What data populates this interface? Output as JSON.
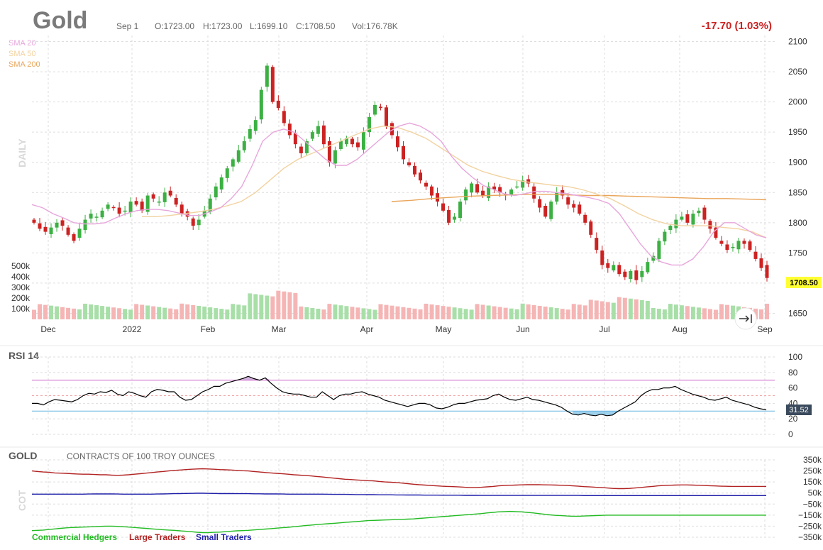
{
  "header": {
    "title": "Gold",
    "date": "Sep 1",
    "open": "O:1723.00",
    "high": "H:1723.00",
    "low": "L:1699.10",
    "close": "C:1708.50",
    "volume": "Vol:176.78K",
    "change": "-17.70 (1.03%)"
  },
  "legend": {
    "sma20": "SMA 20",
    "sma50": "SMA 50",
    "sma200": "SMA 200"
  },
  "interval_label": "DAILY",
  "price_tag": "1708.50",
  "colors": {
    "up": "#3cb043",
    "down": "#cc2222",
    "vol_up": "#a8dfa8",
    "vol_down": "#f5b5b5",
    "sma20": "#e7a6dc",
    "sma50": "#f2d2a0",
    "sma200": "#e9a55a",
    "rsi": "#000000",
    "rsi_hi": "#cc66cc",
    "rsi_lo": "#66b3e0",
    "hedgers": "#22bb22",
    "large": "#b22222",
    "small": "#1f1faa",
    "change": "#cc2222"
  },
  "rsi_label": "RSI 14",
  "rsi_value": "31.52",
  "cot": {
    "title": "GOLD",
    "subtitle": "CONTRACTS OF 100 TROY OUNCES",
    "side_label": "COT"
  },
  "cot_legend": {
    "hedgers": "Commercial Hedgers",
    "large": "Large Traders",
    "small": "Small Traders"
  },
  "nav_icon": "jump-to-latest-icon",
  "chart_data": [
    {
      "type": "candlestick",
      "x_labels": [
        "Dec",
        "2022",
        "Feb",
        "Mar",
        "Apr",
        "May",
        "Jun",
        "Jul",
        "Aug",
        "Sep"
      ],
      "y_ticks": [
        1650,
        1700,
        1750,
        1800,
        1850,
        1900,
        1950,
        2000,
        2050,
        2100
      ],
      "ylim": [
        1640,
        2110
      ],
      "volume_ticks": [
        "100k",
        "200k",
        "300k",
        "400k",
        "500k"
      ],
      "close_path": [
        1800,
        1790,
        1785,
        1792,
        1800,
        1795,
        1780,
        1770,
        1790,
        1805,
        1815,
        1810,
        1820,
        1830,
        1825,
        1815,
        1820,
        1835,
        1830,
        1820,
        1845,
        1840,
        1835,
        1850,
        1845,
        1830,
        1815,
        1810,
        1795,
        1805,
        1820,
        1840,
        1860,
        1875,
        1890,
        1905,
        1920,
        1935,
        1955,
        1970,
        2020,
        2060,
        2000,
        1990,
        1965,
        1945,
        1930,
        1915,
        1935,
        1950,
        1960,
        1930,
        1900,
        1920,
        1935,
        1940,
        1930,
        1925,
        1950,
        1975,
        1995,
        1990,
        1960,
        1945,
        1925,
        1905,
        1895,
        1880,
        1870,
        1860,
        1845,
        1835,
        1820,
        1800,
        1810,
        1835,
        1855,
        1865,
        1850,
        1845,
        1860,
        1855,
        1850,
        1845,
        1855,
        1860,
        1870,
        1865,
        1840,
        1825,
        1810,
        1835,
        1850,
        1845,
        1830,
        1825,
        1815,
        1800,
        1780,
        1755,
        1730,
        1725,
        1730,
        1715,
        1710,
        1720,
        1705,
        1720,
        1735,
        1745,
        1770,
        1785,
        1795,
        1805,
        1810,
        1800,
        1815,
        1820,
        1805,
        1790,
        1775,
        1765,
        1755,
        1760,
        1770,
        1765,
        1755,
        1740,
        1725,
        1708.5
      ],
      "sma20": [
        1830,
        1825,
        1815,
        1808,
        1800,
        1798,
        1798,
        1800,
        1808,
        1815,
        1820,
        1822,
        1822,
        1820,
        1816,
        1812,
        1812,
        1818,
        1825,
        1840,
        1860,
        1895,
        1935,
        1950,
        1955,
        1950,
        1935,
        1920,
        1905,
        1895,
        1895,
        1905,
        1920,
        1935,
        1950,
        1960,
        1965,
        1960,
        1950,
        1935,
        1910,
        1890,
        1875,
        1862,
        1855,
        1848,
        1845,
        1848,
        1852,
        1852,
        1850,
        1848,
        1845,
        1842,
        1838,
        1832,
        1815,
        1790,
        1765,
        1745,
        1735,
        1730,
        1730,
        1740,
        1760,
        1785,
        1800,
        1800,
        1790,
        1780,
        1775
      ],
      "sma50": [
        1810,
        1810,
        1812,
        1815,
        1818,
        1822,
        1828,
        1835,
        1850,
        1870,
        1890,
        1905,
        1915,
        1925,
        1935,
        1945,
        1955,
        1960,
        1958,
        1950,
        1940,
        1925,
        1910,
        1895,
        1885,
        1878,
        1872,
        1868,
        1865,
        1862,
        1860,
        1855,
        1848,
        1840,
        1828,
        1815,
        1805,
        1798,
        1795,
        1795,
        1795,
        1792,
        1790,
        1785,
        1775
      ],
      "sma200": [
        1835,
        1837,
        1840,
        1842,
        1844,
        1845,
        1846,
        1847,
        1847,
        1846,
        1845,
        1845,
        1844,
        1843,
        1842,
        1841,
        1840,
        1840,
        1839,
        1838
      ],
      "current_price": 1708.5
    },
    {
      "type": "line",
      "title": "RSI 14",
      "y_ticks": [
        0,
        20,
        40,
        60,
        80,
        100
      ],
      "ylim": [
        0,
        100
      ],
      "overbought": 70,
      "oversold": 30,
      "values": [
        40,
        40,
        38,
        42,
        45,
        44,
        43,
        42,
        45,
        50,
        53,
        52,
        55,
        54,
        57,
        52,
        50,
        55,
        53,
        50,
        48,
        55,
        58,
        57,
        55,
        55,
        48,
        44,
        45,
        50,
        55,
        58,
        62,
        62,
        66,
        68,
        70,
        72,
        75,
        72,
        70,
        73,
        66,
        60,
        55,
        53,
        52,
        52,
        50,
        48,
        48,
        55,
        50,
        45,
        50,
        52,
        52,
        54,
        55,
        52,
        50,
        48,
        44,
        42,
        40,
        38,
        36,
        38,
        40,
        40,
        38,
        34,
        33,
        35,
        38,
        40,
        40,
        42,
        44,
        45,
        46,
        50,
        52,
        48,
        45,
        44,
        46,
        48,
        45,
        44,
        42,
        40,
        38,
        35,
        30,
        26,
        25,
        27,
        25,
        24,
        26,
        24,
        25,
        30,
        34,
        38,
        42,
        50,
        55,
        58,
        58,
        60,
        60,
        62,
        58,
        55,
        52,
        50,
        48,
        45,
        44,
        46,
        48,
        44,
        42,
        40,
        38,
        35,
        33,
        31.52
      ],
      "current": 31.52
    },
    {
      "type": "line",
      "title": "GOLD",
      "y_ticks": [
        "350k",
        "250k",
        "150k",
        "50k",
        "−50k",
        "−150k",
        "−250k",
        "−350k"
      ],
      "ylim": [
        -350000,
        350000
      ],
      "series": [
        {
          "name": "Large Traders",
          "values": [
            250,
            245,
            240,
            238,
            232,
            230,
            228,
            225,
            222,
            220,
            220,
            218,
            215,
            215,
            212,
            210,
            212,
            215,
            220,
            225,
            230,
            235,
            240,
            245,
            250,
            255,
            258,
            262,
            265,
            268,
            270,
            268,
            265,
            262,
            260,
            258,
            255,
            252,
            250,
            245,
            240,
            236,
            232,
            228,
            224,
            220,
            215,
            212,
            208,
            205,
            200,
            195,
            190,
            185,
            180,
            175,
            172,
            168,
            165,
            162,
            160,
            155,
            150,
            148,
            145,
            140,
            135,
            130,
            125,
            122,
            118,
            115,
            112,
            110,
            108,
            105,
            102,
            100,
            100,
            102,
            106,
            110,
            115,
            118,
            120,
            122,
            124,
            125,
            126,
            125,
            124,
            123,
            122,
            120,
            118,
            115,
            112,
            108,
            105,
            102,
            100,
            96,
            92,
            90,
            90,
            92,
            96,
            100,
            105,
            110,
            115,
            118,
            120,
            122,
            123,
            123,
            122,
            120,
            118,
            116,
            114,
            112,
            111,
            110,
            110,
            110,
            110,
            110,
            110,
            110
          ]
        },
        {
          "name": "Small Traders",
          "values": [
            40,
            40,
            40,
            40,
            40,
            40,
            40,
            40,
            40,
            40,
            41,
            42,
            42,
            42,
            42,
            41,
            40,
            40,
            40,
            40,
            40,
            40,
            41,
            42,
            43,
            44,
            45,
            46,
            47,
            48,
            48,
            47,
            46,
            45,
            45,
            45,
            44,
            44,
            44,
            43,
            43,
            42,
            42,
            42,
            41,
            40,
            40,
            40,
            40,
            40,
            40,
            40,
            39,
            38,
            38,
            38,
            37,
            36,
            36,
            35,
            35,
            34,
            34,
            34,
            33,
            33,
            32,
            32,
            32,
            31,
            31,
            31,
            30,
            30,
            30,
            30,
            29,
            29,
            29,
            28,
            28,
            28,
            28,
            28,
            28,
            28,
            28,
            28,
            28,
            28,
            28,
            28,
            28,
            28,
            28,
            28,
            28,
            27,
            27,
            27,
            27,
            27,
            27,
            27,
            27,
            27,
            27,
            27,
            27,
            27,
            27,
            27,
            27,
            27,
            27,
            27,
            27,
            27,
            27,
            27,
            27,
            27,
            27,
            27,
            27,
            27,
            27,
            27,
            27,
            27
          ]
        },
        {
          "name": "Commercial Hedgers",
          "values": [
            -290,
            -288,
            -285,
            -280,
            -275,
            -270,
            -265,
            -262,
            -260,
            -258,
            -256,
            -254,
            -252,
            -250,
            -250,
            -252,
            -255,
            -258,
            -262,
            -266,
            -270,
            -274,
            -278,
            -282,
            -285,
            -288,
            -292,
            -296,
            -300,
            -305,
            -308,
            -308,
            -306,
            -304,
            -300,
            -296,
            -292,
            -290,
            -288,
            -284,
            -280,
            -276,
            -272,
            -268,
            -264,
            -260,
            -255,
            -250,
            -245,
            -240,
            -236,
            -232,
            -228,
            -224,
            -220,
            -216,
            -212,
            -208,
            -204,
            -200,
            -198,
            -196,
            -194,
            -192,
            -190,
            -188,
            -186,
            -184,
            -180,
            -176,
            -172,
            -168,
            -164,
            -160,
            -156,
            -152,
            -148,
            -144,
            -140,
            -136,
            -130,
            -125,
            -120,
            -118,
            -116,
            -118,
            -120,
            -125,
            -130,
            -136,
            -142,
            -148,
            -152,
            -155,
            -158,
            -160,
            -160,
            -158,
            -156,
            -154,
            -152,
            -150,
            -150,
            -150,
            -150,
            -150,
            -150,
            -150,
            -150,
            -150,
            -150,
            -150,
            -150,
            -150,
            -150,
            -150,
            -150,
            -150,
            -150,
            -150,
            -150,
            -150,
            -150,
            -150,
            -150,
            -150,
            -150,
            -150,
            -150,
            -150
          ]
        }
      ],
      "legend_position": "bottom-left"
    }
  ]
}
